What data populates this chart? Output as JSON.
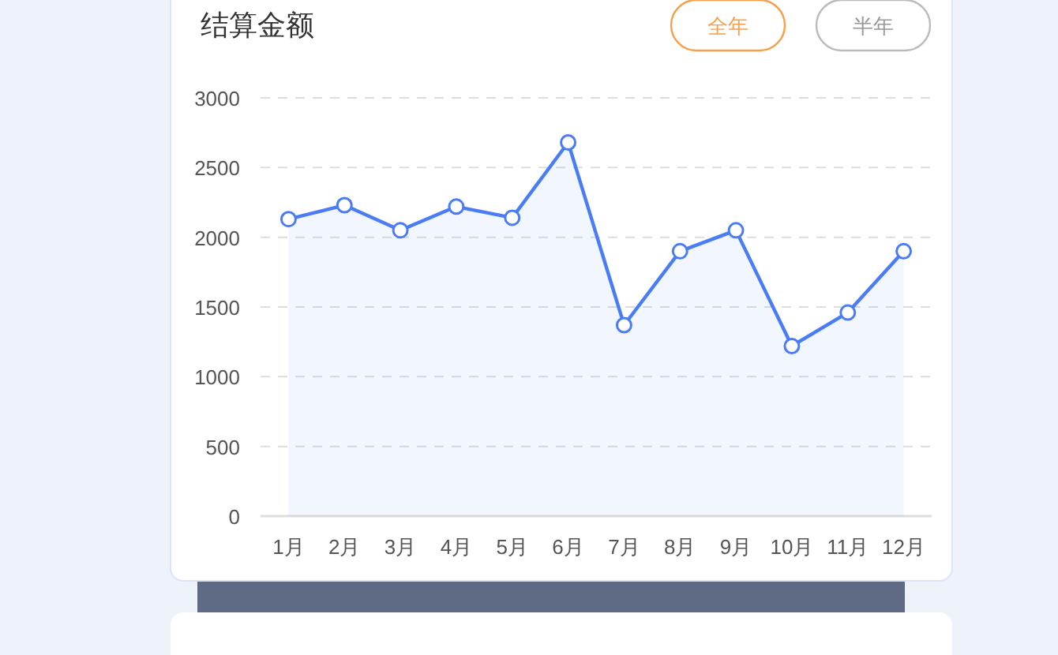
{
  "chart_data": {
    "type": "area",
    "title": "结算金额",
    "annotations": [
      "全年",
      "半年"
    ],
    "categories": [
      "1月",
      "2月",
      "3月",
      "4月",
      "5月",
      "6月",
      "7月",
      "8月",
      "9月",
      "10月",
      "11月",
      "12月"
    ],
    "series": [
      {
        "color": "#4a7cf5",
        "values": [
          2130,
          2230,
          2050,
          2220,
          2140,
          2680,
          1370,
          1900,
          2050,
          1220,
          1460,
          1900
        ]
      }
    ],
    "ylim": [
      0,
      3000
    ],
    "yticks": [
      0,
      500,
      1000,
      1500,
      2000,
      2500,
      3000
    ],
    "grid": "y",
    "marker": "circle",
    "line_style": "solid"
  }
}
